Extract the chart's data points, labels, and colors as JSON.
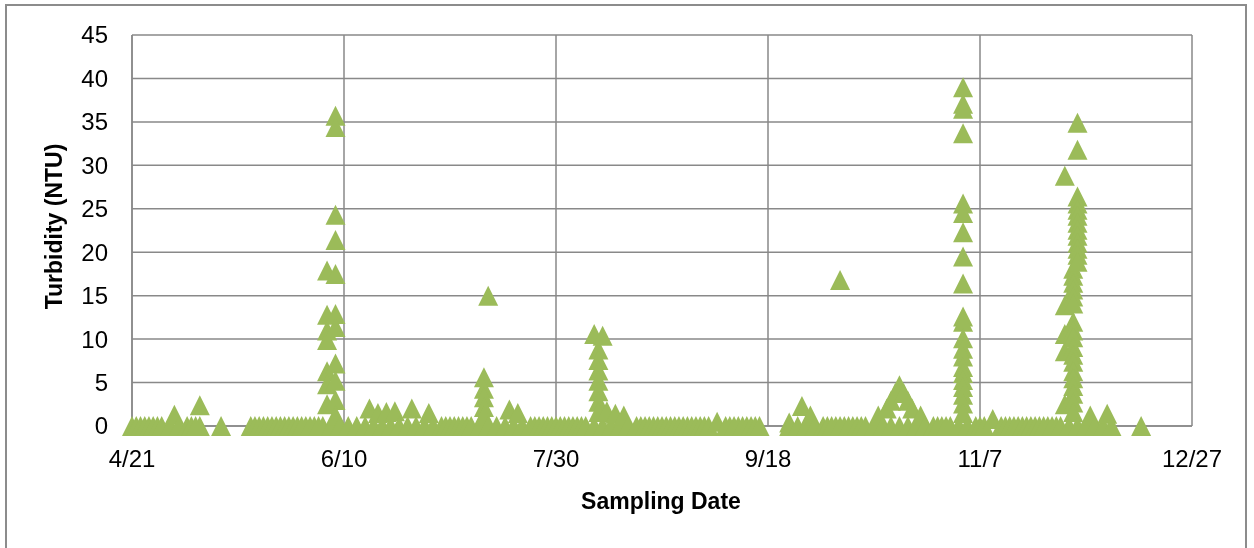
{
  "chart_data": {
    "type": "scatter",
    "xlabel": "Sampling Date",
    "ylabel": "Turbidity (NTU)",
    "color": "#9bbb59",
    "marker": "triangle",
    "grid": true,
    "xlim": [
      "--04-21",
      "--12-27"
    ],
    "xticks": [
      {
        "value": "--04-21",
        "label": "4/21"
      },
      {
        "value": "--06-10",
        "label": "6/10"
      },
      {
        "value": "--07-30",
        "label": "7/30"
      },
      {
        "value": "--09-18",
        "label": "9/18"
      },
      {
        "value": "--11-07",
        "label": "11/7"
      },
      {
        "value": "--12-27",
        "label": "12/27"
      }
    ],
    "ylim": [
      0,
      45
    ],
    "yticks": [
      0,
      5,
      10,
      15,
      20,
      25,
      30,
      35,
      40,
      45
    ],
    "x": [
      "--04-21",
      "--04-22",
      "--04-23",
      "--04-24",
      "--04-25",
      "--04-26",
      "--04-27",
      "--04-28",
      "--04-30",
      "--05-01",
      "--05-02",
      "--05-04",
      "--05-05",
      "--05-06",
      "--05-07",
      "--05-07",
      "--05-12",
      "--05-19",
      "--05-20",
      "--05-21",
      "--05-22",
      "--05-23",
      "--05-24",
      "--05-25",
      "--05-26",
      "--05-27",
      "--05-28",
      "--05-29",
      "--05-30",
      "--05-31",
      "--06-01",
      "--06-02",
      "--06-03",
      "--06-04",
      "--06-05",
      "--06-06",
      "--06-06",
      "--06-06",
      "--06-06",
      "--06-06",
      "--06-06",
      "--06-06",
      "--06-07",
      "--06-08",
      "--06-08",
      "--06-08",
      "--06-08",
      "--06-08",
      "--06-08",
      "--06-08",
      "--06-08",
      "--06-08",
      "--06-08",
      "--06-08",
      "--06-09",
      "--06-11",
      "--06-13",
      "--06-15",
      "--06-16",
      "--06-17",
      "--06-18",
      "--06-19",
      "--06-20",
      "--06-21",
      "--06-22",
      "--06-23",
      "--06-25",
      "--06-26",
      "--06-27",
      "--06-29",
      "--06-30",
      "--07-01",
      "--07-03",
      "--07-04",
      "--07-05",
      "--07-06",
      "--07-07",
      "--07-08",
      "--07-09",
      "--07-10",
      "--07-12",
      "--07-13",
      "--07-13",
      "--07-13",
      "--07-13",
      "--07-13",
      "--07-14",
      "--07-14",
      "--07-16",
      "--07-18",
      "--07-19",
      "--07-20",
      "--07-21",
      "--07-22",
      "--07-24",
      "--07-25",
      "--07-26",
      "--07-27",
      "--07-28",
      "--07-29",
      "--07-30",
      "--07-31",
      "--08-01",
      "--08-02",
      "--08-03",
      "--08-04",
      "--08-05",
      "--08-06",
      "--08-08",
      "--08-08",
      "--08-09",
      "--08-09",
      "--08-09",
      "--08-09",
      "--08-09",
      "--08-09",
      "--08-09",
      "--08-10",
      "--08-10",
      "--08-11",
      "--08-12",
      "--08-13",
      "--08-14",
      "--08-15",
      "--08-16",
      "--08-18",
      "--08-19",
      "--08-20",
      "--08-21",
      "--08-22",
      "--08-23",
      "--08-24",
      "--08-25",
      "--08-26",
      "--08-27",
      "--08-28",
      "--08-29",
      "--08-30",
      "--08-31",
      "--09-01",
      "--09-02",
      "--09-03",
      "--09-04",
      "--09-06",
      "--09-08",
      "--09-09",
      "--09-10",
      "--09-11",
      "--09-12",
      "--09-13",
      "--09-14",
      "--09-15",
      "--09-16",
      "--09-23",
      "--09-23",
      "--09-25",
      "--09-26",
      "--09-27",
      "--09-28",
      "--09-29",
      "--10-01",
      "--10-02",
      "--10-03",
      "--10-04",
      "--10-05",
      "--10-05",
      "--10-06",
      "--10-07",
      "--10-08",
      "--10-09",
      "--10-10",
      "--10-11",
      "--10-13",
      "--10-14",
      "--10-15",
      "--10-16",
      "--10-17",
      "--10-17",
      "--10-18",
      "--10-19",
      "--10-19",
      "--10-20",
      "--10-21",
      "--10-21",
      "--10-22",
      "--10-23",
      "--10-24",
      "--10-25",
      "--10-27",
      "--10-28",
      "--10-29",
      "--10-30",
      "--10-31",
      "--11-02",
      "--11-03",
      "--11-03",
      "--11-03",
      "--11-03",
      "--11-03",
      "--11-03",
      "--11-03",
      "--11-03",
      "--11-03",
      "--11-03",
      "--11-03",
      "--11-03",
      "--11-03",
      "--11-03",
      "--11-03",
      "--11-03",
      "--11-03",
      "--11-03",
      "--11-03",
      "--11-03",
      "--11-03",
      "--11-04",
      "--11-06",
      "--11-07",
      "--11-08",
      "--11-10",
      "--11-12",
      "--11-13",
      "--11-14",
      "--11-15",
      "--11-16",
      "--11-17",
      "--11-18",
      "--11-19",
      "--11-20",
      "--11-21",
      "--11-22",
      "--11-23",
      "--11-24",
      "--11-25",
      "--11-26",
      "--11-27",
      "--11-27",
      "--11-27",
      "--11-27",
      "--11-27",
      "--11-28",
      "--11-29",
      "--11-29",
      "--11-29",
      "--11-29",
      "--11-29",
      "--11-29",
      "--11-29",
      "--11-29",
      "--11-29",
      "--11-29",
      "--11-29",
      "--11-29",
      "--11-29",
      "--11-29",
      "--11-29",
      "--11-29",
      "--11-29",
      "--11-29",
      "--11-30",
      "--11-30",
      "--11-30",
      "--11-30",
      "--11-30",
      "--11-30",
      "--11-30",
      "--11-30",
      "--11-30",
      "--11-30",
      "--11-30",
      "--11-30",
      "--11-30",
      "--11-30",
      "--12-02",
      "--12-03",
      "--12-04",
      "--12-06",
      "--12-07",
      "--12-08",
      "--12-15"
    ],
    "values": [
      0,
      0,
      0,
      0,
      0,
      0,
      0,
      0,
      0,
      1.3,
      0,
      0,
      0,
      0,
      2.4,
      0,
      0,
      0,
      0,
      0,
      0,
      0,
      0,
      0,
      0,
      0,
      0,
      0,
      0,
      0,
      0,
      0,
      0,
      0,
      0,
      17.9,
      12.8,
      11.0,
      9.9,
      6.3,
      4.8,
      2.5,
      0,
      35.7,
      34.4,
      24.3,
      21.4,
      17.5,
      12.9,
      11.4,
      7.2,
      5.2,
      3.0,
      1.2,
      0,
      0,
      0,
      0,
      2.0,
      0,
      1.5,
      0,
      1.6,
      0,
      1.7,
      0,
      0,
      2.0,
      0,
      0,
      1.5,
      0,
      0,
      0,
      0,
      0,
      0,
      0,
      0,
      0,
      0,
      5.6,
      4.3,
      3.3,
      2.2,
      1.2,
      15.0,
      0,
      0,
      0,
      1.9,
      0,
      1.5,
      0,
      0,
      0,
      0,
      0,
      0,
      0,
      0,
      0,
      0,
      0,
      0,
      0,
      0,
      0,
      10.6,
      0,
      8.8,
      7.6,
      6.4,
      5.2,
      4.0,
      2.8,
      1.6,
      10.4,
      0,
      1.7,
      0,
      1.4,
      0,
      1.2,
      0,
      0,
      0,
      0,
      0,
      0,
      0,
      0,
      0,
      0,
      0,
      0,
      0,
      0,
      0,
      0,
      0,
      0,
      0,
      0.5,
      0,
      0,
      0,
      0,
      0,
      0,
      0,
      0,
      0,
      0.4,
      0,
      0,
      2.3,
      0,
      1.2,
      0,
      0,
      0,
      0,
      0,
      0,
      16.8,
      0,
      0,
      0,
      0,
      0,
      0,
      0,
      1.2,
      0,
      2.0,
      2.9,
      0,
      3.8,
      4.7,
      0,
      3.8,
      2.9,
      0,
      2.0,
      0,
      1.2,
      0,
      0,
      0,
      0,
      0,
      0,
      0,
      39.0,
      37.1,
      36.5,
      33.7,
      25.6,
      24.5,
      22.3,
      19.5,
      16.4,
      12.6,
      12.0,
      10.1,
      8.9,
      8.0,
      6.8,
      6.1,
      5.3,
      4.5,
      3.6,
      2.6,
      1.5,
      0,
      0,
      0,
      0,
      0.8,
      0,
      0,
      0,
      0,
      0,
      0,
      0,
      0,
      0,
      0,
      0,
      0,
      0,
      0,
      0,
      28.8,
      13.9,
      10.6,
      8.6,
      2.5,
      0,
      18.1,
      17.3,
      16.5,
      15.7,
      14.9,
      14.1,
      12.0,
      11.0,
      10.2,
      9.1,
      8.2,
      7.4,
      6.3,
      5.5,
      4.6,
      3.7,
      2.7,
      1.6,
      34.9,
      31.8,
      26.4,
      25.6,
      24.9,
      24.2,
      23.4,
      22.6,
      21.9,
      21.1,
      20.4,
      19.7,
      18.9,
      0,
      0,
      1.2,
      0,
      0,
      1.4,
      0,
      0
    ]
  }
}
